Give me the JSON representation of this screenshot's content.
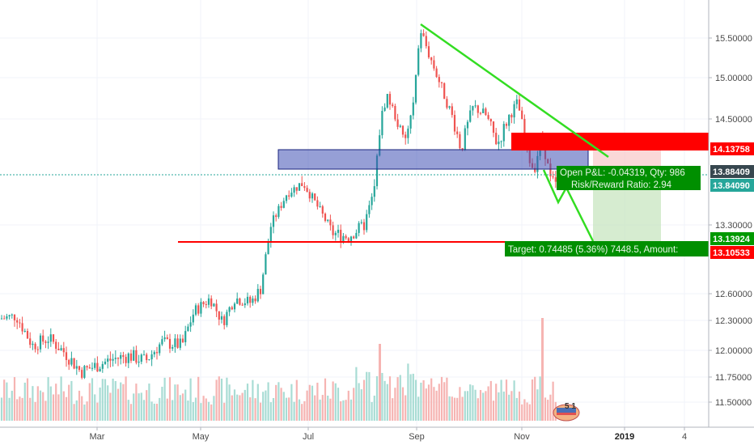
{
  "chart_data": {
    "type": "candlestick",
    "x_ticks": [
      "Mar",
      "May",
      "Jul",
      "Sep",
      "Nov",
      "2019",
      "4"
    ],
    "y_ticks": [
      "15.50000",
      "15.00000",
      "14.50000",
      "13.30000",
      "12.60000",
      "12.30000",
      "12.00000",
      "11.75000",
      "11.50000"
    ],
    "price_badges": [
      {
        "label": "14.13758",
        "color": "#ff0000",
        "value": 14.13758
      },
      {
        "label": "13.88409",
        "color": "#37474f",
        "value": 13.88409
      },
      {
        "label": "13.84090",
        "color": "#26a69a",
        "value": 13.8409
      },
      {
        "label": "13.13924",
        "color": "#009900",
        "value": 13.13924
      },
      {
        "label": "13.10533",
        "color": "#ff0000",
        "value": 13.10533
      }
    ],
    "position_tool": {
      "open_pnl": "Open P&L: -0.04319, Qty: 986",
      "risk_reward": "Risk/Reward Ratio: 2.94",
      "target": "Target: 0.74485 (5.36%) 7448.5, Amount:"
    },
    "annotations": {
      "support_level": 13.15,
      "resistance_zone": [
        13.86,
        14.05
      ],
      "trendline_start": {
        "month": "Sep",
        "price": 15.65
      },
      "trendline_end": {
        "month": "Dec",
        "price": 14.05
      }
    },
    "colors": {
      "up": "#26a69a",
      "down": "#ef5350",
      "trendline": "#33dd22",
      "support": "#ff0000",
      "zone": "#3f51b5"
    },
    "logo_text": "5 1"
  }
}
